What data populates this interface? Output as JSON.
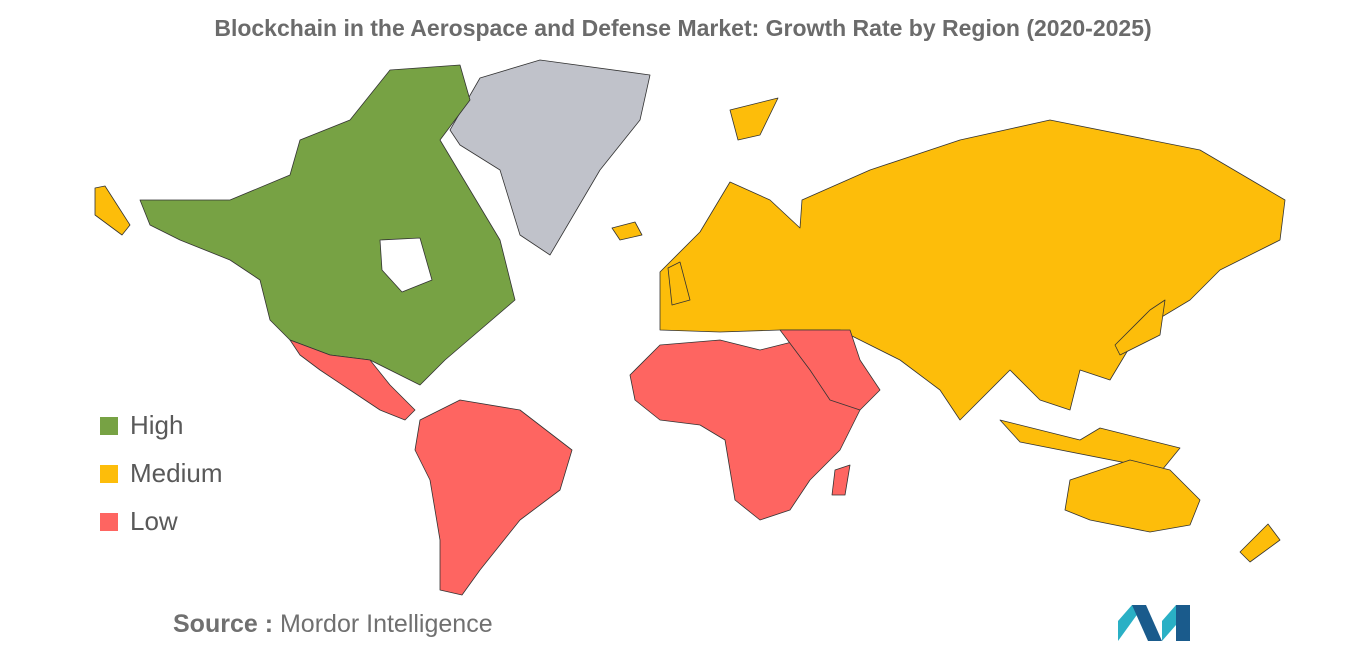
{
  "title": "Blockchain in the Aerospace and Defense Market: Growth Rate by Region (2020-2025)",
  "legend": [
    {
      "label": "High",
      "color": "#77a244"
    },
    {
      "label": "Medium",
      "color": "#fdbd0a"
    },
    {
      "label": "Low",
      "color": "#fe6561"
    }
  ],
  "source": {
    "label": "Source :",
    "text": "Mordor Intelligence"
  }
}
